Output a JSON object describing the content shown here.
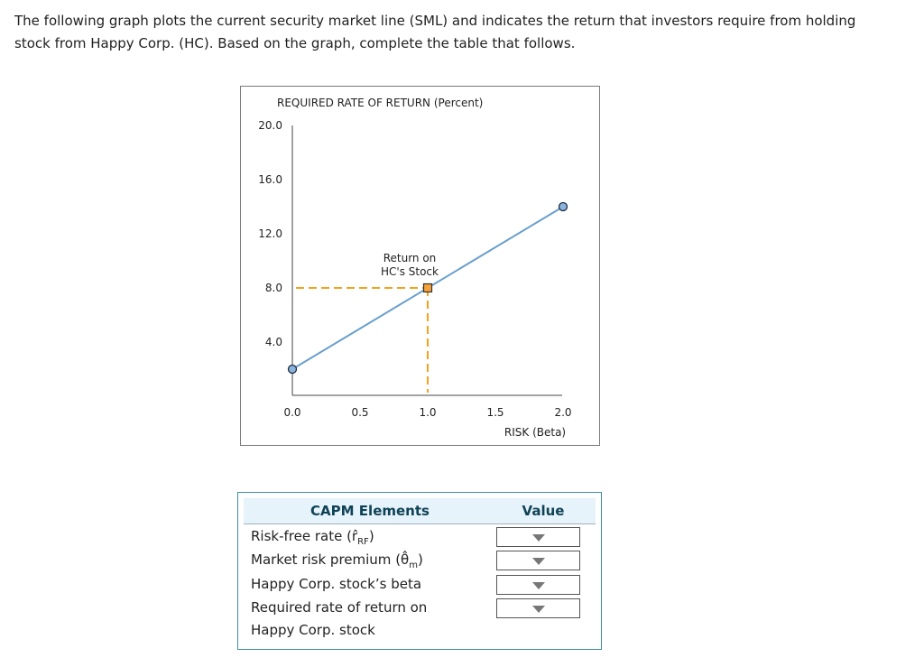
{
  "intro": {
    "text": "The following graph plots the current security market line (SML) and indicates the return that investors require from holding stock from Happy Corp. (HC). Based on the graph, complete the table that follows."
  },
  "chart_data": {
    "type": "line",
    "ylabel": "REQUIRED RATE OF RETURN (Percent)",
    "xlabel": "RISK (Beta)",
    "xlim": [
      0,
      2
    ],
    "ylim": [
      0,
      20
    ],
    "x_ticks": [
      "0.0",
      "0.5",
      "1.0",
      "1.5",
      "2.0"
    ],
    "y_ticks": [
      "20.0",
      "16.0",
      "12.0",
      "8.0",
      "4.0"
    ],
    "grid": false,
    "series": [
      {
        "points": [
          [
            0,
            2
          ],
          [
            2,
            14
          ]
        ]
      }
    ],
    "hc_point": {
      "x": 1.0,
      "y": 8.0
    },
    "annotation": [
      "Return on",
      "HC's Stock"
    ],
    "colors": {
      "line": "#6a9fcc",
      "dashed": "#f2a21c",
      "marker_fill": "#f5a23a",
      "endpoint_fill": "#8ab4e0"
    }
  },
  "table": {
    "header_elements": "CAPM Elements",
    "header_value": "Value",
    "rows": [
      {
        "label": "Risk-free rate (r̂",
        "sub": "RF",
        "suffix": ")"
      },
      {
        "label": "Market risk premium (θ̂",
        "sub": "m",
        "suffix": ")"
      },
      {
        "label": "Happy Corp. stock’s beta",
        "sub": "",
        "suffix": ""
      },
      {
        "label": "Required rate of return on",
        "sub": "",
        "suffix": ""
      }
    ],
    "row4_line2": "Happy Corp. stock"
  }
}
